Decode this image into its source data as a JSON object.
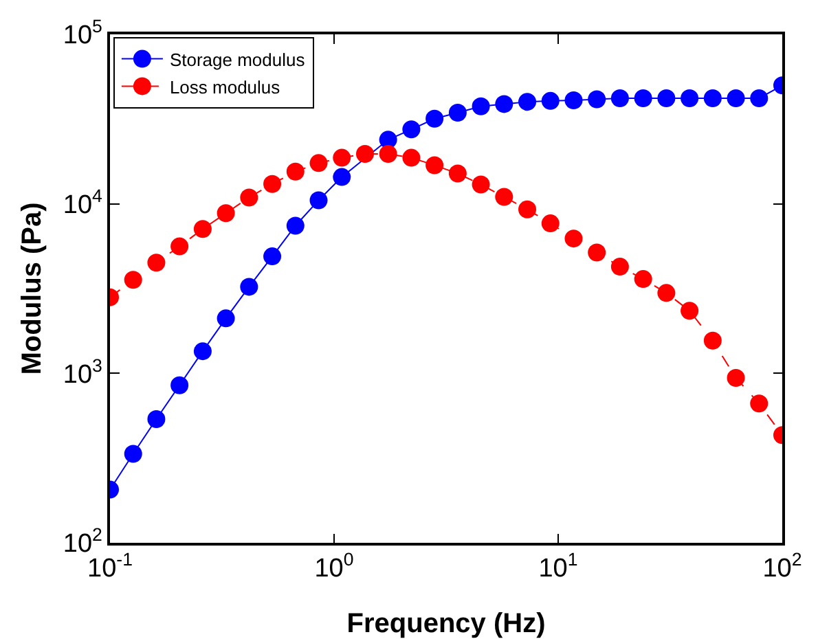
{
  "chart_data": {
    "type": "line",
    "xlabel": "Frequency (Hz)",
    "ylabel": "Modulus (Pa)",
    "log": "xy",
    "marker": "circle",
    "grid": false,
    "legend": "top left",
    "x": [
      0.1,
      0.1269,
      0.161,
      0.2043,
      0.2593,
      0.329,
      0.4175,
      0.5298,
      0.6723,
      0.8532,
      1.083,
      1.374,
      1.743,
      2.212,
      2.807,
      3.562,
      4.52,
      5.736,
      7.279,
      9.237,
      11.72,
      14.87,
      18.87,
      23.95,
      30.39,
      38.57,
      48.94,
      62.1,
      78.8,
      100
    ],
    "series": [
      {
        "name": "Storage modulus",
        "color": "#0000ff",
        "line_style": "solid",
        "values": [
          206,
          335,
          537,
          850,
          1350,
          2110,
          3240,
          4900,
          7430,
          10500,
          14400,
          null,
          23900,
          27500,
          31800,
          34500,
          37600,
          38800,
          40000,
          40500,
          40800,
          41400,
          42000,
          42000,
          42000,
          42000,
          42000,
          42000,
          42000,
          50000
        ]
      },
      {
        "name": "Loss modulus",
        "color": "#ff0000",
        "line_style": "dashed",
        "values": [
          2810,
          3560,
          4500,
          5610,
          7110,
          8810,
          10900,
          13100,
          15500,
          17400,
          18700,
          19700,
          19700,
          18700,
          16900,
          15100,
          13000,
          11000,
          9270,
          7670,
          6240,
          5160,
          4260,
          3600,
          2980,
          2340,
          1560,
          940,
          664,
          432
        ]
      }
    ],
    "xlim": [
      0.1,
      100
    ],
    "xticks": [
      {
        "value": 0.1,
        "label": "10$^{-1}$"
      },
      {
        "value": 1,
        "label": "10$^{0}$"
      },
      {
        "value": 10,
        "label": "10$^{1}$"
      },
      {
        "value": 100,
        "label": "10$^{2}$"
      }
    ],
    "ylim": [
      100,
      100000
    ],
    "yticks": [
      {
        "value": 100,
        "label": "10$^{2}$"
      },
      {
        "value": 1000,
        "label": "10$^{3}$"
      },
      {
        "value": 10000,
        "label": "10$^{4}$"
      },
      {
        "value": 100000,
        "label": "10$^{5}$"
      }
    ]
  }
}
